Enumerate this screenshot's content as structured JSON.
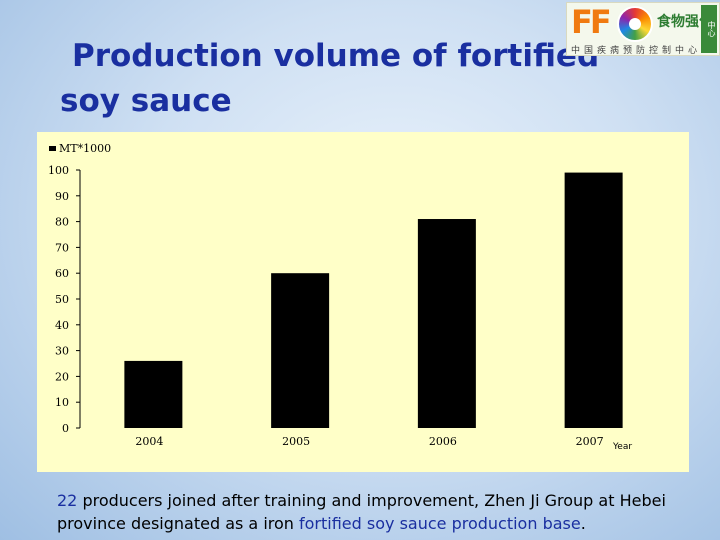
{
  "slide": {
    "title_line1": "Production volume of fortified",
    "title_line2": "soy sauce"
  },
  "logo": {
    "letters": "FF",
    "brand_text": "食物强化",
    "sub_text": "中国疾病预防控制中心",
    "vertical_text": "中心"
  },
  "chart_data": {
    "type": "bar",
    "title": "",
    "legend": "MT*1000",
    "categories": [
      "2004",
      "2005",
      "2006",
      "2007"
    ],
    "values": [
      26,
      60,
      81,
      99
    ],
    "xlabel": "Year",
    "ylabel": "",
    "ylim": [
      0,
      100
    ],
    "yticks": [
      0,
      10,
      20,
      30,
      40,
      50,
      60,
      70,
      80,
      90,
      100
    ],
    "bar_color": "#000000",
    "background": "#ffffc8",
    "grid": false,
    "legend_position": "top-left"
  },
  "caption": {
    "part1": "22",
    "part2": " producers joined after training and improvement, Zhen Ji Group at Hebei province designated as a iron ",
    "part3": "fortified soy sauce production base",
    "part4": "."
  }
}
